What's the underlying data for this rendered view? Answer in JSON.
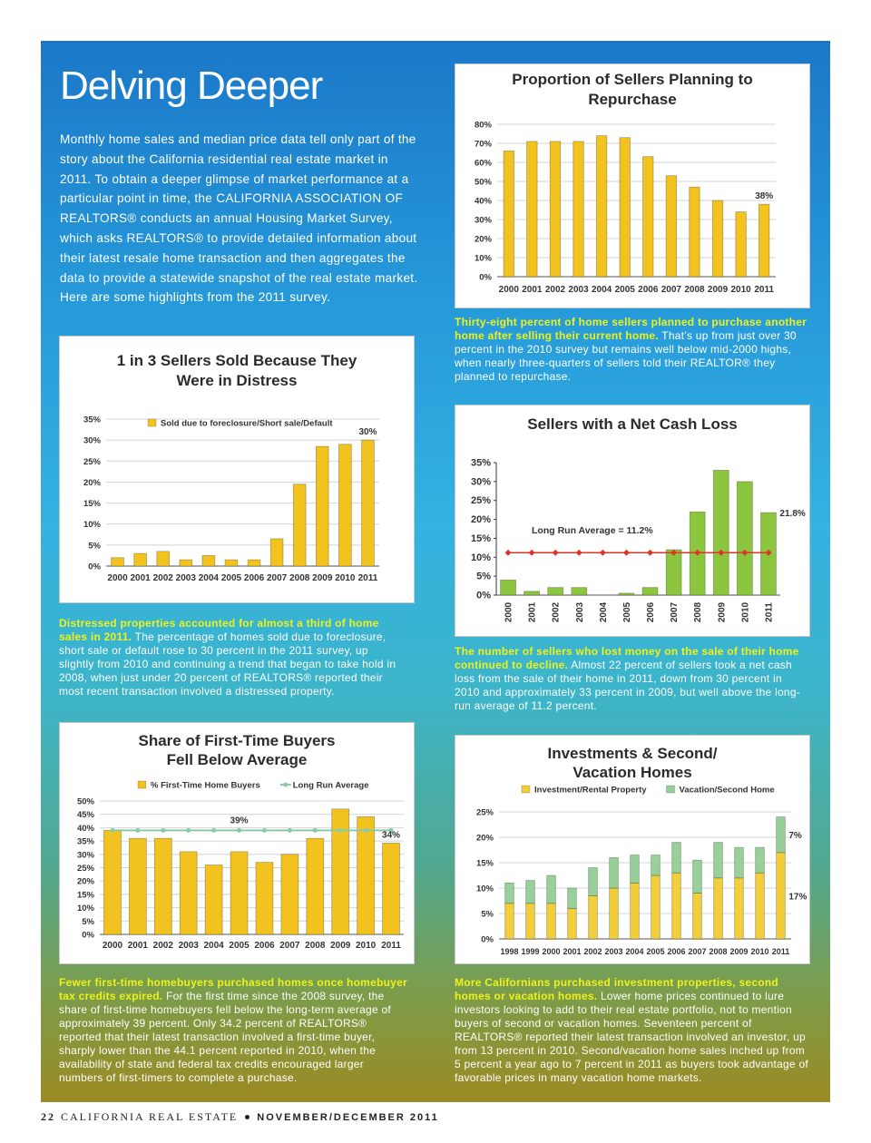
{
  "header": {
    "title": "Delving Deeper",
    "intro": "Monthly home sales and median price data tell only part of the story about the California residential real estate market in 2011. To obtain a deeper glimpse of market performance at a particular point in time, the CALIFORNIA ASSOCIATION OF REALTORS® conducts an annual Housing Market Survey, which asks REALTORS® to provide detailed information about their latest resale home transaction and then aggregates the data to provide a statewide snapshot of the real estate market.  Here are some highlights from the 2011 survey."
  },
  "chart_data": [
    {
      "type": "bar",
      "title": [
        "Proportion of Sellers Planning to",
        "Repurchase"
      ],
      "categories": [
        "2000",
        "2001",
        "2002",
        "2003",
        "2004",
        "2005",
        "2006",
        "2007",
        "2008",
        "2009",
        "2010",
        "2011"
      ],
      "values": [
        66,
        71,
        71,
        71,
        74,
        73,
        63,
        53,
        47,
        40,
        34,
        38
      ],
      "value_labels": [
        null,
        null,
        null,
        null,
        null,
        null,
        null,
        null,
        null,
        null,
        null,
        "38%"
      ],
      "color": "#f2c31e",
      "ylim": [
        0,
        80
      ],
      "yticks": [
        {
          "value": 0,
          "label": "0%"
        },
        {
          "value": 10,
          "label": "10%"
        },
        {
          "value": 20,
          "label": "20%"
        },
        {
          "value": 30,
          "label": "30%"
        },
        {
          "value": 40,
          "label": "40%"
        },
        {
          "value": 50,
          "label": "50%"
        },
        {
          "value": 60,
          "label": "60%"
        },
        {
          "value": 70,
          "label": "70%"
        },
        {
          "value": 80,
          "label": "80%"
        }
      ],
      "grid": true
    },
    {
      "type": "bar",
      "title": [
        "1 in 3 Sellers Sold Because They",
        "Were in Distress"
      ],
      "categories": [
        "2000",
        "2001",
        "2002",
        "2003",
        "2004",
        "2005",
        "2006",
        "2007",
        "2008",
        "2009",
        "2010",
        "2011"
      ],
      "series": [
        {
          "name": "Sold due to foreclosure/Short sale/Default",
          "color": "#f2c31e",
          "values": [
            2,
            3,
            3.5,
            1.5,
            2.5,
            1.5,
            1.5,
            6.5,
            19.5,
            28.5,
            29,
            30
          ],
          "value_labels": [
            null,
            null,
            null,
            null,
            null,
            null,
            null,
            null,
            null,
            null,
            null,
            "30%"
          ]
        }
      ],
      "ylim": [
        0,
        35
      ],
      "yticks": [
        {
          "value": 0,
          "label": "0%"
        },
        {
          "value": 5,
          "label": "5%"
        },
        {
          "value": 10,
          "label": "10%"
        },
        {
          "value": 15,
          "label": "15%"
        },
        {
          "value": 20,
          "label": "20%"
        },
        {
          "value": 25,
          "label": "25%"
        },
        {
          "value": 30,
          "label": "30%"
        },
        {
          "value": 35,
          "label": "35%"
        }
      ],
      "grid": true
    },
    {
      "type": "bar",
      "title": [
        "Sellers with a Net Cash Loss"
      ],
      "categories": [
        "2000",
        "2001",
        "2002",
        "2003",
        "2004",
        "2005",
        "2006",
        "2007",
        "2008",
        "2009",
        "2010",
        "2011"
      ],
      "values": [
        4,
        1,
        2,
        2,
        0,
        0.5,
        2,
        12,
        22,
        33,
        30,
        21.8
      ],
      "value_labels": [
        null,
        null,
        null,
        null,
        null,
        null,
        null,
        null,
        null,
        null,
        null,
        "21.8%"
      ],
      "color": "#8cc63f",
      "average": {
        "value": 11.2,
        "label": "Long Run Average = 11.2%",
        "color": "#e0342a"
      },
      "ylim": [
        0,
        35
      ],
      "yticks": [
        {
          "value": 0,
          "label": "0%"
        },
        {
          "value": 5,
          "label": "5%"
        },
        {
          "value": 10,
          "label": "10%"
        },
        {
          "value": 15,
          "label": "15%"
        },
        {
          "value": 20,
          "label": "20%"
        },
        {
          "value": 25,
          "label": "25%"
        },
        {
          "value": 30,
          "label": "30%"
        },
        {
          "value": 35,
          "label": "35%"
        }
      ],
      "grid": false
    },
    {
      "type": "bar",
      "title": [
        "Share of First-Time Buyers",
        "Fell Below Average"
      ],
      "categories": [
        "2000",
        "2001",
        "2002",
        "2003",
        "2004",
        "2005",
        "2006",
        "2007",
        "2008",
        "2009",
        "2010",
        "2011"
      ],
      "series": [
        {
          "name": "% First-Time Home Buyers",
          "color": "#f2c31e",
          "values": [
            39,
            36,
            36,
            31,
            26,
            31,
            27,
            30,
            36,
            47,
            44.1,
            34.2
          ],
          "value_labels": [
            null,
            null,
            null,
            null,
            null,
            null,
            null,
            null,
            null,
            null,
            null,
            "34%"
          ]
        },
        {
          "name": "Long Run Average",
          "type": "line",
          "color": "#8ccaa6",
          "values": [
            39,
            39,
            39,
            39,
            39,
            39,
            39,
            39,
            39,
            39,
            39,
            39
          ],
          "value_labels": [
            null,
            null,
            null,
            null,
            null,
            "39%",
            null,
            null,
            null,
            null,
            null,
            null
          ]
        }
      ],
      "ylim": [
        0,
        50
      ],
      "yticks": [
        {
          "value": 0,
          "label": "0%"
        },
        {
          "value": 5,
          "label": "5%"
        },
        {
          "value": 10,
          "label": "10%"
        },
        {
          "value": 15,
          "label": "15%"
        },
        {
          "value": 20,
          "label": "20%"
        },
        {
          "value": 25,
          "label": "25%"
        },
        {
          "value": 30,
          "label": "30%"
        },
        {
          "value": 35,
          "label": "35%"
        },
        {
          "value": 40,
          "label": "40%"
        },
        {
          "value": 45,
          "label": "45%"
        },
        {
          "value": 50,
          "label": "50%"
        }
      ],
      "grid": true
    },
    {
      "type": "bar",
      "stacked": true,
      "title": [
        "Investments & Second/",
        "Vacation Homes"
      ],
      "categories": [
        "1998",
        "1999",
        "2000",
        "2001",
        "2002",
        "2003",
        "2004",
        "2005",
        "2006",
        "2007",
        "2008",
        "2009",
        "2010",
        "2011"
      ],
      "series": [
        {
          "name": "Investment/Rental Property",
          "color": "#f2cf3a",
          "values": [
            7,
            7,
            7,
            6,
            8.5,
            10,
            11,
            12.5,
            13,
            9,
            12,
            12,
            13,
            17
          ],
          "value_labels": [
            null,
            null,
            null,
            null,
            null,
            null,
            null,
            null,
            null,
            null,
            null,
            null,
            null,
            "17%"
          ]
        },
        {
          "name": "Vacation/Second Home",
          "color": "#98d09a",
          "values": [
            4,
            4.5,
            5.5,
            4,
            5.5,
            6,
            5.5,
            4,
            6,
            6.5,
            7,
            6,
            5,
            7
          ],
          "value_labels": [
            null,
            null,
            null,
            null,
            null,
            null,
            null,
            null,
            null,
            null,
            null,
            null,
            null,
            "7%"
          ]
        }
      ],
      "ylim": [
        0,
        25
      ],
      "yticks": [
        {
          "value": 0,
          "label": "0%"
        },
        {
          "value": 5,
          "label": "5%"
        },
        {
          "value": 10,
          "label": "10%"
        },
        {
          "value": 15,
          "label": "15%"
        },
        {
          "value": 20,
          "label": "20%"
        },
        {
          "value": 25,
          "label": "25%"
        }
      ],
      "grid": true
    }
  ],
  "captions": [
    {
      "lead": "Thirty-eight percent of home sellers planned to purchase another home after selling their current home.",
      "text": "That’s up from just over 30 percent in the 2010 survey but remains well below mid-2000 highs, when nearly three-quarters of sellers told their REALTOR® they planned to repurchase."
    },
    {
      "lead": "Distressed properties accounted for almost a third of home sales in 2011.",
      "text": "The percentage of homes sold due to foreclosure, short sale or default rose to 30 percent in the 2011 survey, up slightly from 2010 and continuing a trend that began to take hold in 2008, when just under 20 percent of REALTORS® reported their most recent transaction involved a distressed property."
    },
    {
      "lead": "The number of sellers who lost money on the sale of their home continued to decline.",
      "text": "Almost 22 percent of sellers took a net cash loss from the sale of their home in 2011, down from 30 percent in 2010 and approximately 33 percent in 2009, but well above the long-run average of 11.2 percent."
    },
    {
      "lead": "Fewer first-time homebuyers purchased homes once homebuyer tax credits expired.",
      "text": "For the first time since the 2008 survey, the share of first-time homebuyers fell below the long-term average of approximately 39 percent.  Only 34.2 percent of REALTORS® reported that their latest transaction involved a first-time buyer, sharply lower than the 44.1 percent reported in 2010, when the availability of state and federal tax credits encouraged larger numbers of first-timers to complete a purchase."
    },
    {
      "lead": "More Californians purchased investment properties, second homes or vacation homes.",
      "text": "Lower home prices continued to lure investors looking to add to their real estate portfolio, not to mention buyers of second or vacation homes.  Seventeen percent of REALTORS® reported their latest transaction involved an investor, up from 13 percent in 2010.  Second/vacation home sales inched up from 5 percent a year ago to 7 percent in 2011 as buyers took advantage of favorable prices in many vacation home markets."
    }
  ],
  "footer": {
    "page": "22",
    "publication": "CALIFORNIA REAL ESTATE",
    "issue": "NOVEMBER/DECEMBER 2011"
  }
}
